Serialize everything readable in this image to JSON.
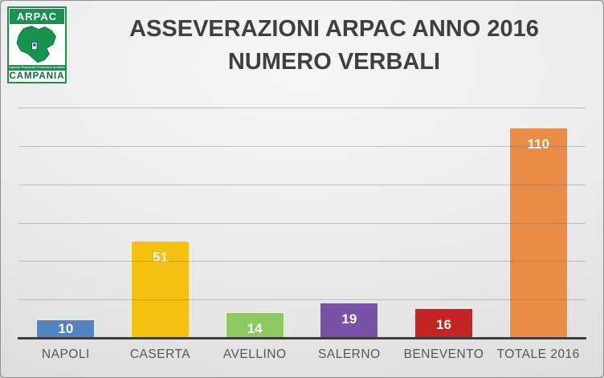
{
  "logo": {
    "org": "ARPAC",
    "tagline": "Agenzia Regionale Protezione Ambientale",
    "region": "CAMPANIA",
    "green": "#17934f"
  },
  "title": {
    "line1": "ASSEVERAZIONI ARPAC ANNO 2016",
    "line2": "NUMERO VERBALI"
  },
  "chart_data": {
    "type": "bar",
    "title": "ASSEVERAZIONI ARPAC ANNO 2016 NUMERO VERBALI",
    "categories": [
      "NAPOLI",
      "CASERTA",
      "AVELLINO",
      "SALERNO",
      "BENEVENTO",
      "TOTALE 2016"
    ],
    "values": [
      10,
      51,
      14,
      19,
      16,
      110
    ],
    "bar_colors": [
      "#5583c1",
      "#f4c013",
      "#8dc863",
      "#7a52a5",
      "#c42524",
      "#ec8b45"
    ],
    "data_label_color": "#ffffff",
    "xlabel": "",
    "ylabel": "",
    "ylim": [
      0,
      120
    ],
    "gridline_interval": 20,
    "grid": true,
    "legend": false,
    "y_tick_labels_visible": false
  }
}
